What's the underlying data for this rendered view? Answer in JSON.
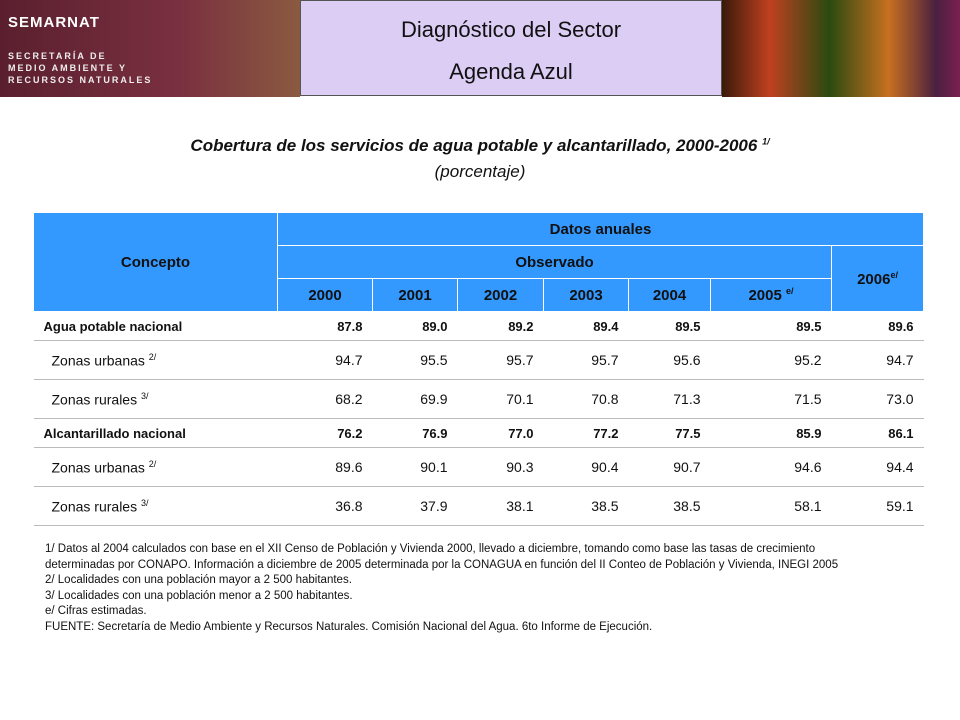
{
  "header": {
    "logo": "SEMARNAT",
    "agency_lines": [
      "SECRETARÍA DE",
      "MEDIO AMBIENTE Y",
      "RECURSOS NATURALES"
    ],
    "title": "Diagnóstico del Sector",
    "subtitle": "Agenda Azul"
  },
  "table": {
    "title": "Cobertura de los servicios de agua potable y alcantarillado, 2000-2006",
    "title_note": "1/",
    "unit": "(porcentaje)",
    "header": {
      "concept": "Concepto",
      "group": "Datos anuales",
      "observed": "Observado",
      "years": [
        "2000",
        "2001",
        "2002",
        "2003",
        "2004"
      ],
      "last_observed": {
        "label": "2005",
        "note": "e/"
      },
      "estimated": {
        "label": "2006",
        "note": "e/"
      }
    },
    "rows": [
      {
        "label": "Agua potable nacional",
        "bold": true,
        "values": [
          "87.8",
          "89.0",
          "89.2",
          "89.4",
          "89.5",
          "89.5",
          "89.6"
        ]
      },
      {
        "label": "Zonas urbanas",
        "note": "2/",
        "values": [
          "94.7",
          "95.5",
          "95.7",
          "95.7",
          "95.6",
          "95.2",
          "94.7"
        ]
      },
      {
        "label": "Zonas rurales",
        "note": "3/",
        "values": [
          "68.2",
          "69.9",
          "70.1",
          "70.8",
          "71.3",
          "71.5",
          "73.0"
        ]
      },
      {
        "label": "Alcantarillado nacional",
        "bold": true,
        "values": [
          "76.2",
          "76.9",
          "77.0",
          "77.2",
          "77.5",
          "85.9",
          "86.1"
        ]
      },
      {
        "label": "Zonas urbanas",
        "note": "2/",
        "values": [
          "89.6",
          "90.1",
          "90.3",
          "90.4",
          "90.7",
          "94.6",
          "94.4"
        ]
      },
      {
        "label": "Zonas rurales",
        "note": "3/",
        "values": [
          "36.8",
          "37.9",
          "38.1",
          "38.5",
          "38.5",
          "58.1",
          "59.1"
        ]
      }
    ]
  },
  "footnotes": [
    "1/ Datos al 2004 calculados con base en el XII Censo de Población y Vivienda 2000, llevado a diciembre, tomando como base las tasas de crecimiento determinadas por CONAPO. Información a diciembre de 2005 determinada por la CONAGUA en función del II Conteo de Población y Vivienda, INEGI 2005",
    "2/ Localidades con una población mayor a 2 500 habitantes.",
    "3/ Localidades con una población menor a 2 500 habitantes.",
    "e/ Cifras estimadas.",
    "FUENTE: Secretaría de Medio Ambiente y Recursos Naturales.  Comisión Nacional del Agua. 6to Informe de Ejecución."
  ]
}
